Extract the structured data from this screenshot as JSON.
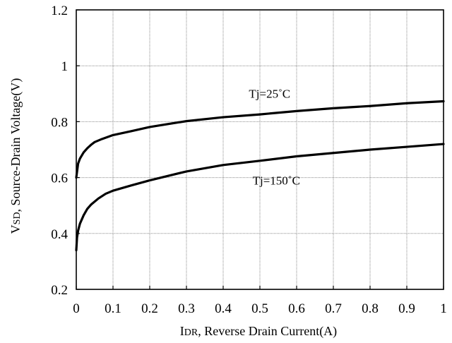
{
  "chart_data": {
    "type": "line",
    "title": "",
    "xlabel": {
      "main": "I",
      "sub": "DR",
      "rest": ", Reverse Drain Current(A)"
    },
    "ylabel": {
      "main": "V",
      "sub": "SD",
      "rest": ", Source-Drain Voltage(V)"
    },
    "xlim": [
      0,
      1
    ],
    "ylim": [
      0.2,
      1.2
    ],
    "x_ticks": [
      "0",
      "0.1",
      "0.2",
      "0.3",
      "0.4",
      "0.5",
      "0.6",
      "0.7",
      "0.8",
      "0.9",
      "1"
    ],
    "y_ticks": [
      "0.2",
      "0.4",
      "0.6",
      "0.8",
      "1",
      "1.2"
    ],
    "grid": true,
    "series": [
      {
        "name": "Tj=25˚C",
        "color": "#000000",
        "x": [
          0.0,
          0.005,
          0.01,
          0.02,
          0.03,
          0.04,
          0.05,
          0.07,
          0.1,
          0.15,
          0.2,
          0.3,
          0.4,
          0.5,
          0.6,
          0.7,
          0.8,
          0.9,
          1.0
        ],
        "y": [
          0.6,
          0.65,
          0.668,
          0.69,
          0.705,
          0.717,
          0.727,
          0.738,
          0.752,
          0.766,
          0.781,
          0.802,
          0.816,
          0.826,
          0.838,
          0.848,
          0.856,
          0.866,
          0.873
        ]
      },
      {
        "name": "Tj=150˚C",
        "color": "#000000",
        "x": [
          0.0,
          0.002,
          0.005,
          0.01,
          0.02,
          0.03,
          0.04,
          0.06,
          0.08,
          0.1,
          0.15,
          0.2,
          0.3,
          0.4,
          0.5,
          0.6,
          0.7,
          0.8,
          0.9,
          1.0
        ],
        "y": [
          0.34,
          0.385,
          0.41,
          0.435,
          0.465,
          0.488,
          0.503,
          0.525,
          0.542,
          0.553,
          0.572,
          0.59,
          0.622,
          0.645,
          0.66,
          0.676,
          0.688,
          0.7,
          0.71,
          0.72
        ]
      }
    ],
    "annotations": [
      {
        "text": "Tj=25˚C",
        "x": 0.47,
        "y": 0.885
      },
      {
        "text": "Tj=150˚C",
        "x": 0.48,
        "y": 0.575
      }
    ]
  }
}
